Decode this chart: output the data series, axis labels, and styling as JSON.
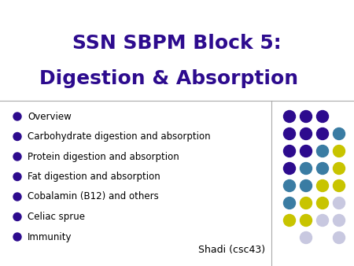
{
  "title_line1": "SSN SBPM Block 5:",
  "title_line2": "Digestion & Absorption",
  "title_color": "#2d0b8e",
  "bullet_color": "#2d0b8e",
  "text_color": "#000000",
  "bg_color": "#ffffff",
  "divider_color": "#aaaaaa",
  "bullet_items": [
    "Overview",
    "Carbohydrate digestion and absorption",
    "Protein digestion and absorption",
    "Fat digestion and absorption",
    "Cobalamin (B12) and others",
    "Celiac sprue",
    "Immunity"
  ],
  "footer_text": "Shadi (csc43)",
  "dot_grid": [
    [
      "#2d0b8e",
      "#2d0b8e",
      "#2d0b8e",
      null
    ],
    [
      "#2d0b8e",
      "#2d0b8e",
      "#2d0b8e",
      "#3a7ca3"
    ],
    [
      "#2d0b8e",
      "#2d0b8e",
      "#3a7ca3",
      "#c8c400"
    ],
    [
      "#2d0b8e",
      "#3a7ca3",
      "#3a7ca3",
      "#c8c400"
    ],
    [
      "#3a7ca3",
      "#3a7ca3",
      "#c8c400",
      "#c8c400"
    ],
    [
      "#3a7ca3",
      "#c8c400",
      "#c8c400",
      "#c8c8e0"
    ],
    [
      "#c8c400",
      "#c8c400",
      "#c8c8e0",
      "#c8c8e0"
    ],
    [
      null,
      "#c8c8e0",
      null,
      "#c8c8e0"
    ]
  ]
}
